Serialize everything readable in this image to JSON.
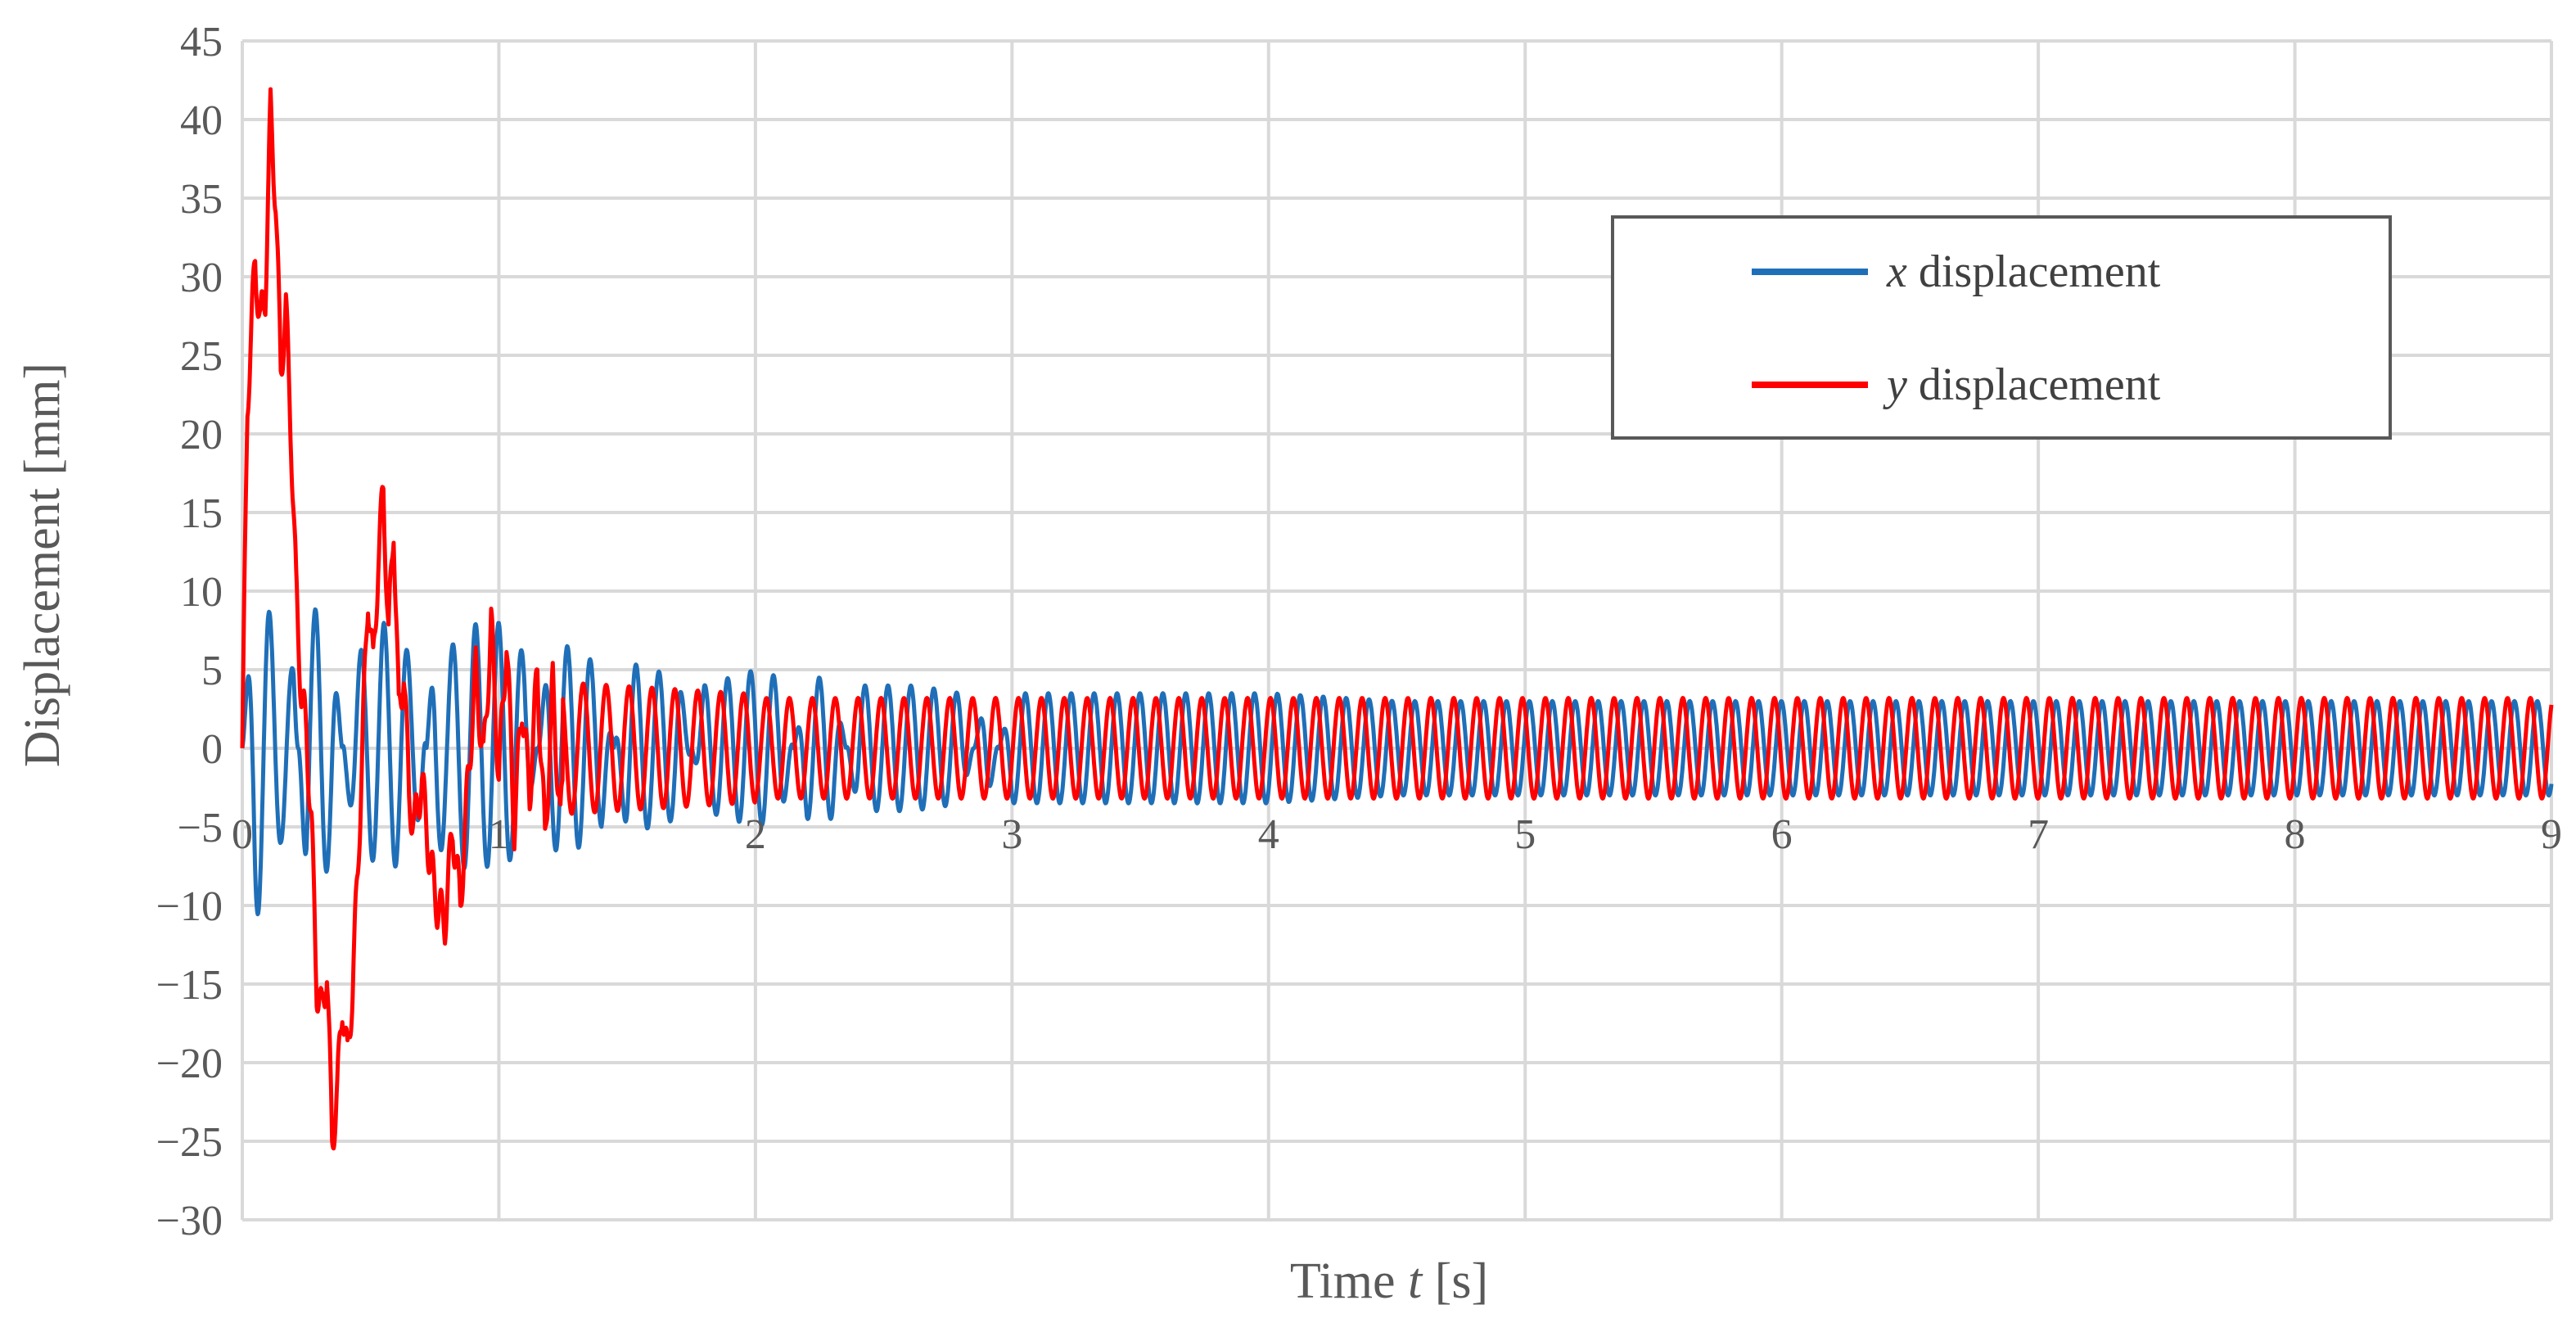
{
  "chart_data": {
    "type": "line",
    "title": "",
    "xlabel": "Time t [s]",
    "xlabel_parts": {
      "prefix": "Time ",
      "var": "t",
      "suffix": " [s]"
    },
    "ylabel": "Displacement [mm]",
    "xlim": [
      0,
      9
    ],
    "ylim": [
      -30,
      45
    ],
    "xticks": [
      0,
      1,
      2,
      3,
      4,
      5,
      6,
      7,
      8,
      9
    ],
    "yticks": [
      45,
      40,
      35,
      30,
      25,
      20,
      15,
      10,
      5,
      0,
      -5,
      -10,
      -15,
      -20,
      -25,
      -30
    ],
    "xtick_labels": [
      "0",
      "1",
      "2",
      "3",
      "4",
      "5",
      "6",
      "7",
      "8",
      "9"
    ],
    "ytick_labels": [
      "45",
      "40",
      "35",
      "30",
      "25",
      "20",
      "15",
      "10",
      "5",
      "0",
      "−5",
      "−10",
      "−15",
      "−20",
      "−25",
      "−30"
    ],
    "grid": true,
    "legend_position": "upper-right",
    "series": [
      {
        "name": "x displacement",
        "legend_var": "x",
        "legend_rest": " displacement",
        "color": "#1F6FB8",
        "x": [
          0.0,
          0.05,
          0.1,
          0.15,
          0.2,
          0.25,
          0.3,
          0.35,
          0.4,
          0.45,
          0.5,
          0.55,
          0.6,
          0.65,
          0.7,
          0.75,
          0.8,
          0.85,
          0.9,
          0.95,
          1.0,
          1.1,
          1.2,
          1.3,
          1.4,
          1.5,
          1.6,
          1.7,
          1.8,
          1.9,
          2.0,
          2.1,
          2.2,
          2.3,
          2.4,
          2.5,
          2.6,
          2.7,
          2.8,
          2.9,
          3.0,
          3.25,
          3.5,
          3.75,
          4.0,
          4.5,
          5.0,
          5.5,
          6.0,
          6.5,
          7.0,
          7.5,
          8.0,
          8.5,
          9.0
        ],
        "envelope": [
          0,
          11,
          9,
          6,
          5,
          -8.5,
          -9,
          -7,
          2,
          6,
          7,
          8,
          7.5,
          6,
          4,
          -7,
          -6,
          -7.5,
          -8,
          -7.5,
          -8,
          -6,
          6.5,
          6.5,
          5,
          -5.5,
          -5,
          -4.5,
          4,
          4.5,
          5,
          4.5,
          -4.5,
          -4.5,
          4,
          4,
          4,
          3.8,
          3.5,
          -3.5,
          3.5,
          3.5,
          3.5,
          3.5,
          3.5,
          3,
          3,
          3,
          3,
          3,
          3,
          3,
          3,
          3,
          3
        ]
      },
      {
        "name": "y displacement",
        "legend_var": "y",
        "legend_rest": " displacement",
        "color": "#FF0000",
        "x": [
          0.0,
          0.02,
          0.05,
          0.07,
          0.09,
          0.11,
          0.13,
          0.15,
          0.17,
          0.19,
          0.21,
          0.23,
          0.25,
          0.27,
          0.29,
          0.31,
          0.33,
          0.35,
          0.37,
          0.39,
          0.41,
          0.43,
          0.45,
          0.47,
          0.49,
          0.51,
          0.53,
          0.55,
          0.57,
          0.59,
          0.61,
          0.63,
          0.65,
          0.67,
          0.7,
          0.73,
          0.76,
          0.79,
          0.82,
          0.85,
          0.88,
          0.91,
          0.94,
          0.97,
          1.0,
          1.03,
          1.06,
          1.09,
          1.12,
          1.15,
          1.18,
          1.21,
          1.24,
          1.27,
          1.3,
          1.35,
          1.4,
          1.45,
          1.5,
          1.55,
          1.6,
          1.65,
          1.7,
          1.75,
          1.8,
          1.9,
          2.0
        ],
        "y": [
          0,
          22,
          31,
          27,
          29,
          40.5,
          35,
          24,
          28,
          20,
          10,
          3.5,
          1,
          -5,
          -15,
          -17,
          -14,
          -25,
          -22,
          -16,
          -20,
          -15,
          -8,
          1,
          10,
          5,
          12,
          16.5,
          7,
          14.5,
          2,
          5,
          -3,
          -5,
          -2,
          -7,
          -10,
          -11,
          -5,
          -10,
          -2,
          5,
          -1,
          8,
          -2,
          7,
          -5,
          3,
          -3,
          5,
          -6,
          4,
          -5,
          4,
          -4.5,
          4.5,
          -5,
          4.5,
          -4,
          4,
          -3.5,
          3.8,
          -3.5,
          3.8,
          -3.5,
          3.5,
          -3
        ]
      }
    ]
  }
}
